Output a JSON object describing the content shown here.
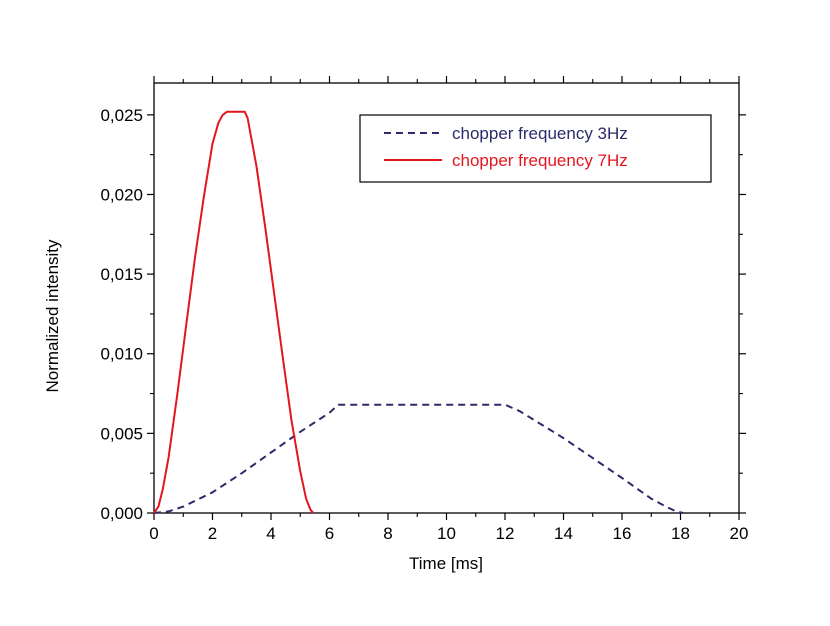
{
  "chart_data": {
    "type": "line",
    "title": "",
    "xlabel": "Time [ms]",
    "ylabel": "Normalized intensity",
    "xlim": [
      0,
      20
    ],
    "ylim": [
      0,
      0.027
    ],
    "x_ticks": [
      0,
      2,
      4,
      6,
      8,
      10,
      12,
      14,
      16,
      18,
      20
    ],
    "x_tick_labels": [
      "0",
      "2",
      "4",
      "6",
      "8",
      "10",
      "12",
      "14",
      "16",
      "18",
      "20"
    ],
    "y_ticks": [
      0,
      0.005,
      0.01,
      0.015,
      0.02,
      0.025
    ],
    "y_tick_labels": [
      "0,000",
      "0,005",
      "0,010",
      "0,015",
      "0,020",
      "0,025"
    ],
    "grid": false,
    "legend_position": "top-right",
    "series": [
      {
        "name": "chopper frequency 3Hz",
        "color": "#2b2b6b",
        "line_style": "dashed",
        "x": [
          0,
          0.5,
          1,
          2,
          3,
          4,
          5,
          6,
          6.3,
          8,
          10,
          12,
          12.5,
          14,
          16,
          17,
          17.5,
          17.85,
          18.1
        ],
        "y": [
          0,
          0.0001,
          0.0004,
          0.0013,
          0.0025,
          0.0038,
          0.0051,
          0.0063,
          0.0068,
          0.0068,
          0.0068,
          0.0068,
          0.0064,
          0.0047,
          0.0022,
          0.0009,
          0.0004,
          0.0001,
          0
        ]
      },
      {
        "name": "chopper frequency 7Hz",
        "color": "#e3161f",
        "line_style": "solid",
        "x": [
          0,
          0.15,
          0.3,
          0.5,
          0.8,
          1.1,
          1.4,
          1.7,
          2.0,
          2.2,
          2.35,
          2.5,
          3.1,
          3.2,
          3.5,
          3.8,
          4.1,
          4.4,
          4.7,
          5.0,
          5.2,
          5.35,
          5.45
        ],
        "y": [
          0,
          0.0004,
          0.0015,
          0.0035,
          0.0075,
          0.0118,
          0.016,
          0.0198,
          0.0232,
          0.0245,
          0.025,
          0.0252,
          0.0252,
          0.0248,
          0.0218,
          0.018,
          0.0139,
          0.0098,
          0.0058,
          0.0026,
          0.0009,
          0.0002,
          0
        ]
      }
    ]
  }
}
